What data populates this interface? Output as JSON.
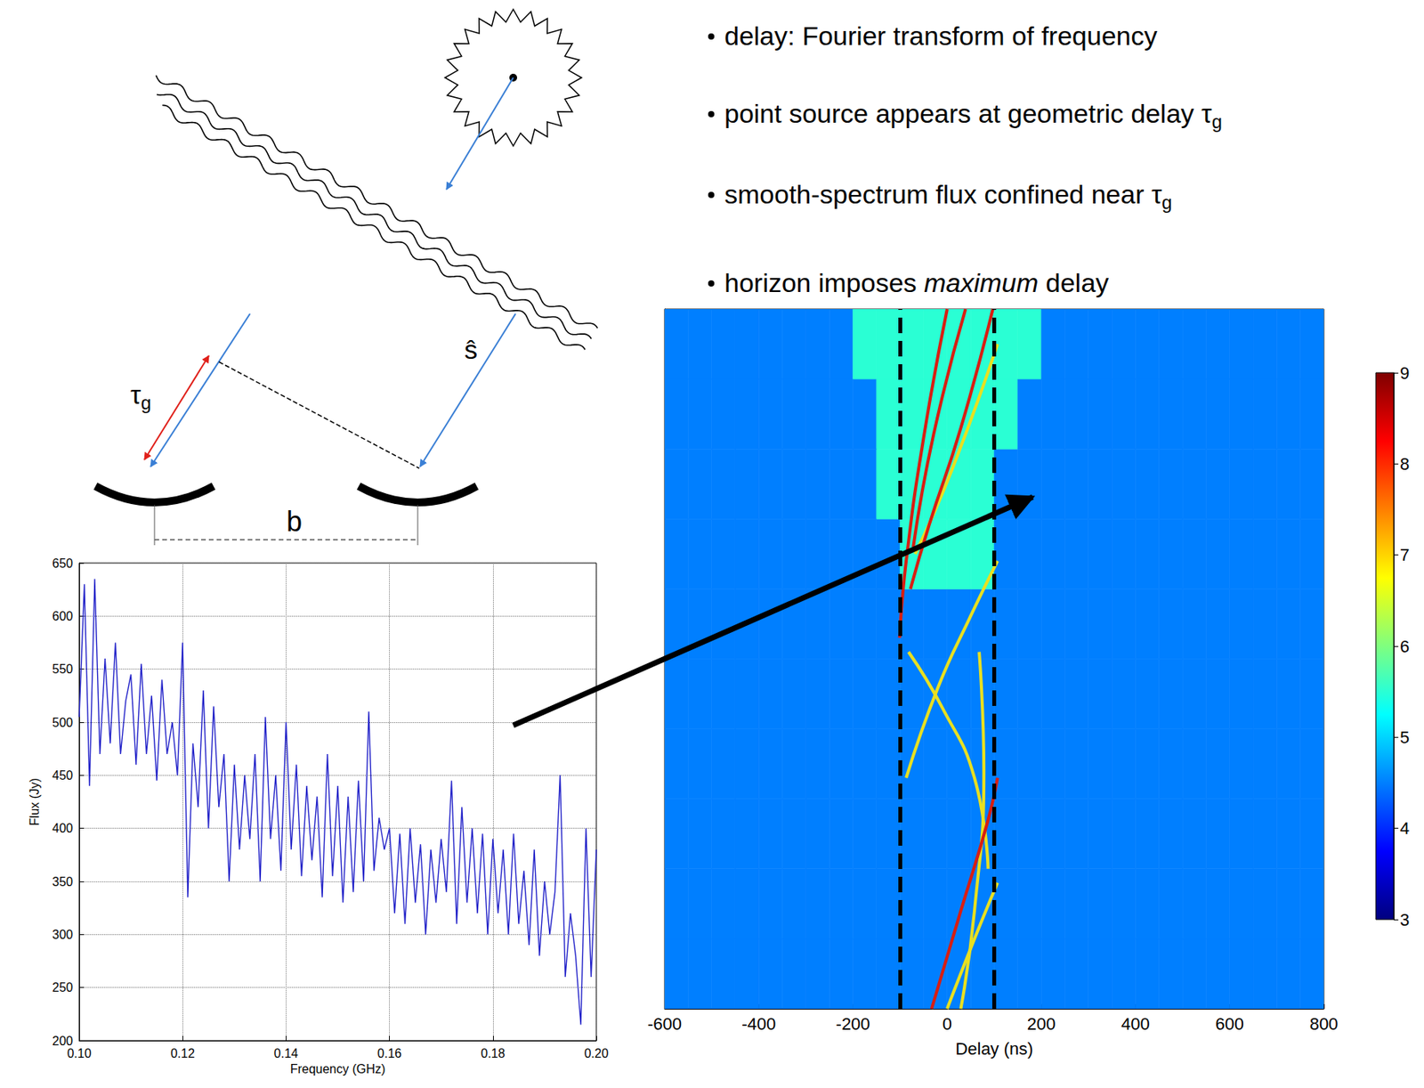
{
  "bullets": [
    [
      {
        "text": "delay: Fourier transform of frequency",
        "style": "normal"
      }
    ],
    [
      {
        "text": "point source appears at geometric delay τ",
        "style": "normal"
      },
      {
        "text": "g",
        "style": "sub"
      }
    ],
    [
      {
        "text": "smooth-spectrum flux confined near τ",
        "style": "normal"
      },
      {
        "text": "g",
        "style": "sub"
      }
    ],
    [
      {
        "text": "horizon imposes ",
        "style": "normal"
      },
      {
        "text": "maximum",
        "style": "italic"
      },
      {
        "text": " delay",
        "style": "normal"
      }
    ]
  ],
  "diagram": {
    "delay_label": [
      {
        "text": "τ",
        "style": "normal"
      },
      {
        "text": "g",
        "style": "sub"
      }
    ],
    "direction_label": [
      {
        "text": "ŝ",
        "style": "normal"
      }
    ],
    "baseline_label": [
      {
        "text": "b",
        "style": "normal"
      }
    ]
  },
  "chart_data": [
    {
      "type": "line",
      "x_label": "Frequency (GHz)",
      "y_label": "Flux (Jy)",
      "color": "#2020c8",
      "marker": "none",
      "line_style": "solid",
      "grid": true,
      "xlim": [
        0.1,
        0.2
      ],
      "xticks": [
        {
          "value": 0.1,
          "label": "0.10"
        },
        0.12,
        0.14,
        0.16,
        0.18,
        {
          "value": 0.2,
          "label": "0.20"
        }
      ],
      "ylim": [
        200,
        650
      ],
      "yticks": [
        200,
        250,
        300,
        350,
        400,
        450,
        500,
        550,
        600,
        650
      ],
      "x": [
        0.1,
        0.101,
        0.102,
        0.103,
        0.104,
        0.105,
        0.106,
        0.107,
        0.108,
        0.109,
        0.11,
        0.111,
        0.112,
        0.113,
        0.114,
        0.115,
        0.116,
        0.117,
        0.118,
        0.119,
        0.12,
        0.121,
        0.122,
        0.123,
        0.124,
        0.125,
        0.126,
        0.127,
        0.128,
        0.129,
        0.13,
        0.131,
        0.132,
        0.133,
        0.134,
        0.135,
        0.136,
        0.137,
        0.138,
        0.139,
        0.14,
        0.141,
        0.142,
        0.143,
        0.144,
        0.145,
        0.146,
        0.147,
        0.148,
        0.149,
        0.15,
        0.151,
        0.152,
        0.153,
        0.154,
        0.155,
        0.156,
        0.157,
        0.158,
        0.159,
        0.16,
        0.161,
        0.162,
        0.163,
        0.164,
        0.165,
        0.166,
        0.167,
        0.168,
        0.169,
        0.17,
        0.171,
        0.172,
        0.173,
        0.174,
        0.175,
        0.176,
        0.177,
        0.178,
        0.179,
        0.18,
        0.181,
        0.182,
        0.183,
        0.184,
        0.185,
        0.186,
        0.187,
        0.188,
        0.189,
        0.19,
        0.191,
        0.192,
        0.193,
        0.194,
        0.195,
        0.196,
        0.197,
        0.198,
        0.199,
        0.2
      ],
      "values": [
        505,
        630,
        440,
        635,
        470,
        560,
        480,
        575,
        470,
        520,
        545,
        460,
        555,
        470,
        525,
        445,
        540,
        470,
        500,
        450,
        575,
        335,
        480,
        420,
        530,
        400,
        515,
        420,
        470,
        350,
        460,
        380,
        450,
        390,
        470,
        350,
        505,
        390,
        450,
        360,
        500,
        380,
        460,
        355,
        440,
        370,
        430,
        335,
        470,
        355,
        440,
        330,
        430,
        340,
        445,
        350,
        510,
        360,
        410,
        380,
        400,
        320,
        395,
        310,
        400,
        330,
        385,
        300,
        380,
        330,
        390,
        340,
        445,
        310,
        420,
        330,
        400,
        320,
        395,
        300,
        390,
        320,
        380,
        300,
        395,
        310,
        360,
        290,
        380,
        280,
        350,
        300,
        340,
        450,
        260,
        320,
        280,
        215,
        400,
        260,
        380
      ]
    },
    {
      "type": "heatmap",
      "x_label": "Delay (ns)",
      "xlim": [
        -600,
        800
      ],
      "xticks": [
        -600,
        -400,
        -200,
        0,
        200,
        400,
        600,
        800
      ],
      "ylim": [
        0,
        100
      ],
      "tick_labels": "x",
      "x_bins": [
        -600,
        -550,
        -500,
        -450,
        -400,
        -350,
        -300,
        -250,
        -200,
        -150,
        -100,
        -50,
        0,
        50,
        100,
        150,
        200,
        250,
        300,
        350,
        400,
        450,
        500,
        550,
        600,
        650,
        700,
        750,
        800
      ],
      "y_bins": [
        0,
        10,
        20,
        30,
        40,
        50,
        60,
        70,
        80,
        90,
        100
      ],
      "cells": [
        [
          4.5,
          4.5,
          4.5,
          4.5,
          4.5,
          4.5,
          4.5,
          4.5,
          4.5,
          4.5,
          4.5,
          4.5,
          4.5,
          4.5,
          4.5,
          4.5,
          4.5,
          4.5,
          4.5,
          4.5,
          4.5,
          4.5,
          4.5,
          4.5,
          4.5,
          4.5,
          4.5,
          4.5
        ],
        [
          4.5,
          4.5,
          4.5,
          4.5,
          4.5,
          4.5,
          4.5,
          4.5,
          4.5,
          4.5,
          4.5,
          4.5,
          4.5,
          4.5,
          4.5,
          4.5,
          4.5,
          4.5,
          4.5,
          4.5,
          4.5,
          4.5,
          4.5,
          4.5,
          4.5,
          4.5,
          4.5,
          4.5
        ],
        [
          4.5,
          4.5,
          4.5,
          4.5,
          4.5,
          4.5,
          4.5,
          4.5,
          4.5,
          4.5,
          4.5,
          4.5,
          4.5,
          4.5,
          4.5,
          4.5,
          4.5,
          4.5,
          4.5,
          4.5,
          4.5,
          4.5,
          4.5,
          4.5,
          4.5,
          4.5,
          4.5,
          4.5
        ],
        [
          4.5,
          4.5,
          4.5,
          4.5,
          4.5,
          4.5,
          4.5,
          4.5,
          4.5,
          4.5,
          4.5,
          4.5,
          4.5,
          4.5,
          4.5,
          4.5,
          4.5,
          4.5,
          4.5,
          4.5,
          4.5,
          4.5,
          4.5,
          4.5,
          4.5,
          4.5,
          4.5,
          4.5
        ],
        [
          4.5,
          4.5,
          4.5,
          4.5,
          4.5,
          4.5,
          4.5,
          4.5,
          4.5,
          4.5,
          4.5,
          4.5,
          4.5,
          4.5,
          4.5,
          4.5,
          4.5,
          4.5,
          4.5,
          4.5,
          4.5,
          4.5,
          4.5,
          4.5,
          4.5,
          4.5,
          4.5,
          4.5
        ],
        [
          4.5,
          4.5,
          4.5,
          4.5,
          4.5,
          4.5,
          4.5,
          4.5,
          4.5,
          4.5,
          4.5,
          4.5,
          4.5,
          4.5,
          4.5,
          4.5,
          4.5,
          4.5,
          4.5,
          4.5,
          4.5,
          4.5,
          4.5,
          4.5,
          4.5,
          4.5,
          4.5,
          4.5
        ],
        [
          4.5,
          4.5,
          4.5,
          4.5,
          4.5,
          4.5,
          4.5,
          4.5,
          4.5,
          4.5,
          5.5,
          5.5,
          5.5,
          5.5,
          4.5,
          4.5,
          4.5,
          4.5,
          4.5,
          4.5,
          4.5,
          4.5,
          4.5,
          4.5,
          4.5,
          4.5,
          4.5,
          4.5
        ],
        [
          4.5,
          4.5,
          4.5,
          4.5,
          4.5,
          4.5,
          4.5,
          4.5,
          4.5,
          5.5,
          5.5,
          5.5,
          5.5,
          5.5,
          4.5,
          4.5,
          4.5,
          4.5,
          4.5,
          4.5,
          4.5,
          4.5,
          4.5,
          4.5,
          4.5,
          4.5,
          4.5,
          4.5
        ],
        [
          4.5,
          4.5,
          4.5,
          4.5,
          4.5,
          4.5,
          4.5,
          4.5,
          4.5,
          5.5,
          5.5,
          5.5,
          5.5,
          5.5,
          5.5,
          4.5,
          4.5,
          4.5,
          4.5,
          4.5,
          4.5,
          4.5,
          4.5,
          4.5,
          4.5,
          4.5,
          4.5,
          4.5
        ],
        [
          4.5,
          4.5,
          4.5,
          4.5,
          4.5,
          4.5,
          4.5,
          4.5,
          5.5,
          5.5,
          5.5,
          5.5,
          5.5,
          5.5,
          5.5,
          5.5,
          4.5,
          4.5,
          4.5,
          4.5,
          4.5,
          4.5,
          4.5,
          4.5,
          4.5,
          4.5,
          4.5,
          4.5
        ]
      ],
      "colorbar": {
        "range": [
          3,
          9
        ],
        "ticks": [
          3,
          4,
          5,
          6,
          7,
          8,
          9
        ]
      },
      "series": [
        {
          "type": "line",
          "color": "#e8e020",
          "x": [
            107,
            10,
            -68
          ],
          "y": [
            95,
            77,
            65
          ]
        },
        {
          "type": "line",
          "color": "#e8e020",
          "x": [
            -87,
            -19,
            49,
            107
          ],
          "y": [
            33,
            46,
            56,
            64
          ]
        },
        {
          "type": "line",
          "color": "#e8e020",
          "x": [
            -82,
            -10,
            58,
            87
          ],
          "y": [
            51,
            43,
            33,
            20
          ]
        },
        {
          "type": "line",
          "color": "#e8e020",
          "x": [
            68,
            78,
            58,
            29
          ],
          "y": [
            51,
            34,
            14,
            0
          ]
        },
        {
          "type": "line",
          "color": "#e8e020",
          "x": [
            0,
            58,
            107
          ],
          "y": [
            0,
            10,
            18
          ]
        },
        {
          "type": "line",
          "color": "#d81e12",
          "x": [
            0,
            -49,
            -87,
            -101
          ],
          "y": [
            100,
            82,
            64,
            53
          ]
        },
        {
          "type": "line",
          "color": "#d81e12",
          "x": [
            39,
            -29,
            -72
          ],
          "y": [
            100,
            82,
            66
          ]
        },
        {
          "type": "line",
          "color": "#d81e12",
          "x": [
            97,
            29,
            -39,
            -78
          ],
          "y": [
            100,
            83,
            69,
            60
          ]
        },
        {
          "type": "line",
          "color": "#d81e12",
          "x": [
            -33,
            29,
            87,
            107
          ],
          "y": [
            0,
            14,
            27,
            33
          ]
        },
        {
          "type": "vline",
          "color": "#000000",
          "line_style": "dashed",
          "x": [
            -100,
            100
          ]
        }
      ]
    }
  ]
}
